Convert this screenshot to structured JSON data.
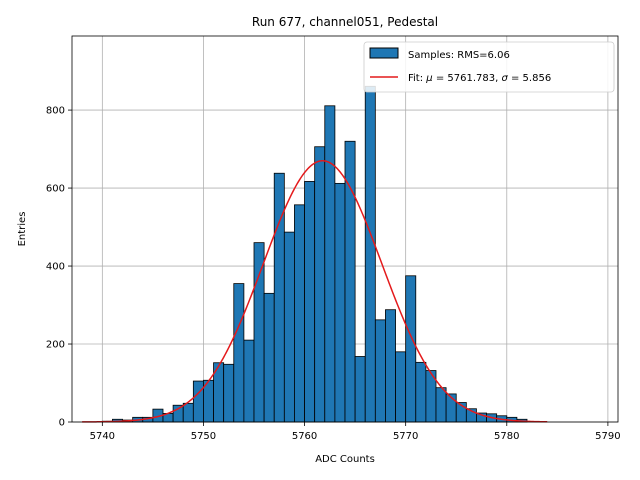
{
  "chart_data": {
    "type": "bar",
    "title": "Run 677, channel051, Pedestal",
    "xlabel": "ADC Counts",
    "ylabel": "Entries",
    "xlim": [
      5737,
      5791
    ],
    "ylim": [
      0,
      990
    ],
    "xticks": [
      5740,
      5750,
      5760,
      5770,
      5780,
      5790
    ],
    "yticks": [
      0,
      200,
      400,
      600,
      800
    ],
    "grid": true,
    "legend_position": "top-right",
    "histogram": {
      "name": "Samples: RMS=6.06",
      "bin_width": 1,
      "bin_starts": [
        5740,
        5741,
        5742,
        5743,
        5744,
        5745,
        5746,
        5747,
        5748,
        5749,
        5750,
        5751,
        5752,
        5753,
        5754,
        5755,
        5756,
        5757,
        5758,
        5759,
        5760,
        5761,
        5762,
        5763,
        5764,
        5765,
        5766,
        5767,
        5768,
        5769,
        5770,
        5771,
        5772,
        5773,
        5774,
        5775,
        5776,
        5777,
        5778,
        5779,
        5780,
        5781
      ],
      "values": [
        2,
        7,
        5,
        12,
        12,
        33,
        22,
        43,
        48,
        105,
        107,
        152,
        148,
        355,
        210,
        460,
        330,
        638,
        487,
        557,
        617,
        706,
        811,
        612,
        720,
        168,
        861,
        262,
        288,
        180,
        375,
        153,
        132,
        88,
        72,
        50,
        34,
        23,
        21,
        16,
        12,
        7
      ],
      "color": "#1f77b4"
    },
    "fit": {
      "name": "Fit: μ = 5761.783, σ = 5.856",
      "label_parts": [
        "Fit: ",
        "μ",
        " = 5761.783, ",
        "σ",
        " = 5.856"
      ],
      "mu": 5761.783,
      "sigma": 5.856,
      "amplitude": 670,
      "x_range": [
        5738,
        5784
      ],
      "color": "#e41a1c"
    }
  }
}
